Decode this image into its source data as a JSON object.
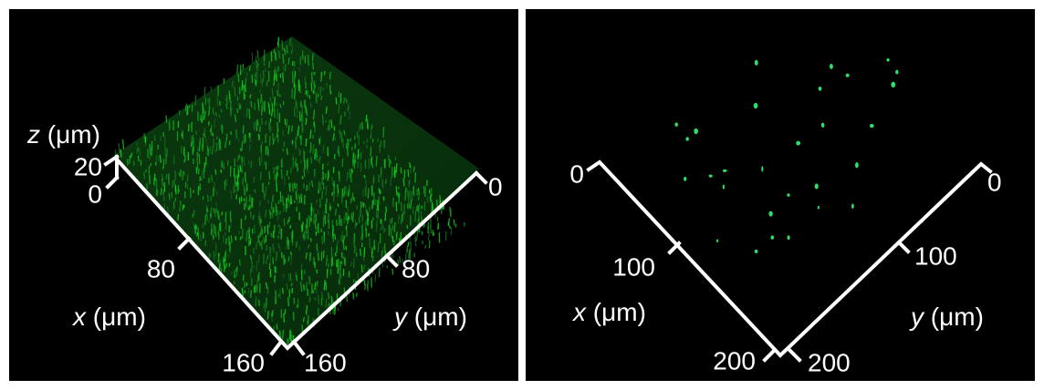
{
  "panels": [
    {
      "z_axis": {
        "var": "z",
        "unit": "(μm)",
        "ticks": [
          20,
          0
        ]
      },
      "x_axis": {
        "var": "x",
        "unit": "(μm)",
        "ticks": [
          0,
          80,
          160
        ]
      },
      "y_axis": {
        "var": "y",
        "unit": "(μm)",
        "ticks": [
          0,
          80,
          160
        ]
      }
    },
    {
      "x_axis": {
        "var": "x",
        "unit": "(μm)",
        "ticks": [
          0,
          100,
          200
        ]
      },
      "y_axis": {
        "var": "y",
        "unit": "(μm)",
        "ticks": [
          0,
          100,
          200
        ]
      }
    }
  ]
}
